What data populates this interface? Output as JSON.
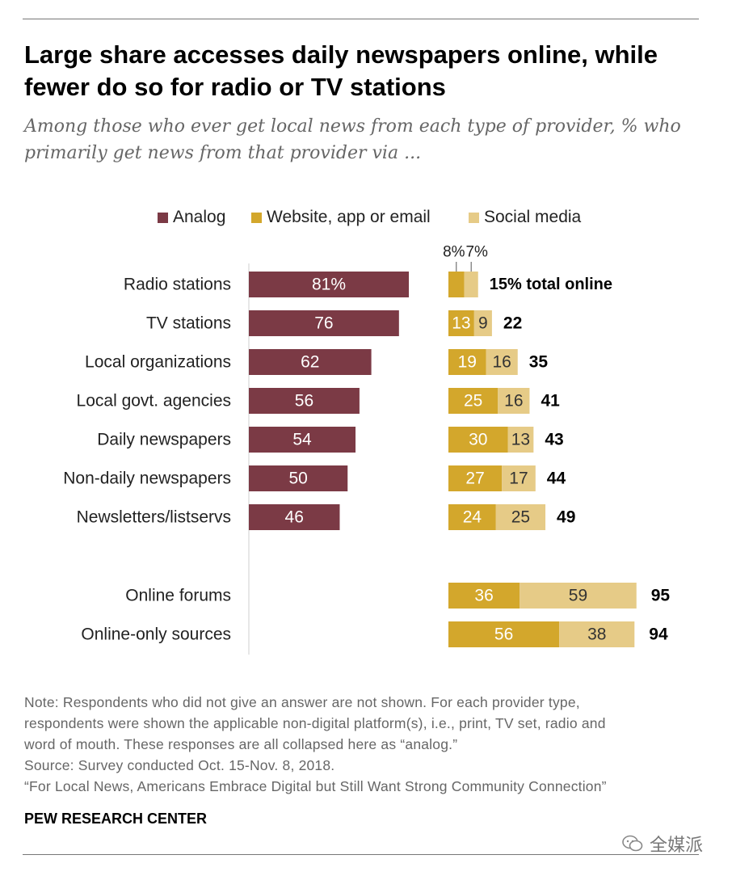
{
  "title_lines": [
    "Large share accesses daily newspapers online, while",
    "fewer do so for radio or TV stations"
  ],
  "subtitle_lines": [
    "Among those who ever get local news from each type of provider, % who",
    "primarily get news from that provider via ..."
  ],
  "colors": {
    "analog": "#7b3a45",
    "website": "#d3a72c",
    "social": "#e6cb87",
    "axis": "#cfcfcf"
  },
  "chart_data": {
    "type": "bar",
    "legend": [
      {
        "name": "Analog",
        "color": "#7b3a45"
      },
      {
        "name": "Website, app or email",
        "color": "#d3a72c"
      },
      {
        "name": "Social media",
        "color": "#e6cb87"
      }
    ],
    "header_labels": {
      "website": "8%",
      "social": "7%"
    },
    "categories": [
      "Radio stations",
      "TV stations",
      "Local organizations",
      "Local govt. agencies",
      "Daily newspapers",
      "Non-daily newspapers",
      "Newsletters/listservs",
      "Online forums",
      "Online-only sources"
    ],
    "series": [
      {
        "name": "Analog",
        "values": [
          81,
          76,
          62,
          56,
          54,
          50,
          46,
          null,
          null
        ],
        "labels": [
          "81%",
          "76",
          "62",
          "56",
          "54",
          "50",
          "46",
          "",
          ""
        ]
      },
      {
        "name": "Website, app or email",
        "values": [
          8,
          13,
          19,
          25,
          30,
          27,
          24,
          36,
          56
        ],
        "labels": [
          "",
          "13",
          "19",
          "25",
          "30",
          "27",
          "24",
          "36",
          "56"
        ]
      },
      {
        "name": "Social media",
        "values": [
          7,
          9,
          16,
          16,
          13,
          17,
          25,
          59,
          38
        ],
        "labels": [
          "",
          "9",
          "16",
          "16",
          "13",
          "17",
          "25",
          "59",
          "38"
        ]
      }
    ],
    "totals": [
      15,
      22,
      35,
      41,
      43,
      44,
      49,
      95,
      94
    ],
    "total_labels": [
      "15% total online",
      "22",
      "35",
      "41",
      "43",
      "44",
      "49",
      "95",
      "94"
    ]
  },
  "notes": [
    "Note: Respondents who did not give an answer are not shown. For each provider type,",
    "respondents were shown the applicable non-digital platform(s), i.e., print, TV set, radio and",
    "word of mouth. These responses are all collapsed here as “analog.”",
    "Source: Survey conducted Oct. 15-Nov. 8, 2018.",
    "“For Local News, Americans Embrace Digital but Still Want Strong Community Connection”"
  ],
  "brand": "PEW RESEARCH CENTER",
  "watermark": "全媒派",
  "icons": {
    "watermark": "wechat-icon"
  }
}
